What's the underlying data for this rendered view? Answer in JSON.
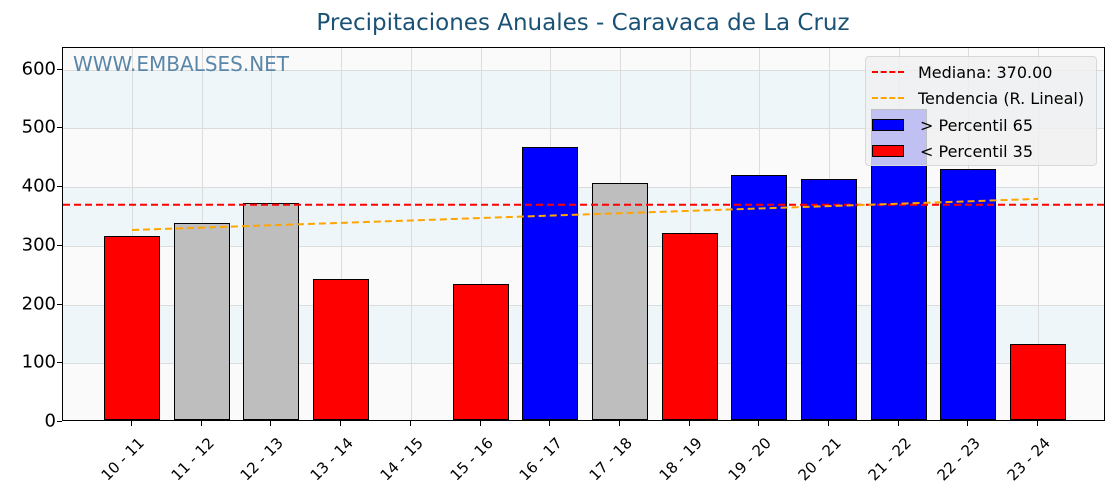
{
  "chart_data": {
    "type": "bar",
    "title": "Precipitaciones Anuales - Caravaca de La Cruz",
    "xlabel": "",
    "ylabel": "",
    "ylim": [
      0,
      637
    ],
    "yticks": [
      0,
      100,
      200,
      300,
      400,
      500,
      600
    ],
    "grid": true,
    "legend_position": "upper right",
    "categories": [
      "10 - 11",
      "11 - 12",
      "12 - 13",
      "13 - 14",
      "14 - 15",
      "15 - 16",
      "16 - 17",
      "17 - 18",
      "18 - 19",
      "19 - 20",
      "20 - 21",
      "21 - 22",
      "22 - 23",
      "23 - 24"
    ],
    "values": [
      314,
      336,
      370,
      240,
      0,
      232,
      465,
      404,
      318,
      418,
      411,
      530,
      428,
      130
    ],
    "bar_colors": [
      "#ff0000",
      "#bebebe",
      "#bebebe",
      "#ff0000",
      "#ff0000",
      "#ff0000",
      "#0000ff",
      "#bebebe",
      "#ff0000",
      "#0000ff",
      "#0000ff",
      "#0000ff",
      "#0000ff",
      "#ff0000"
    ],
    "median": 370.0,
    "trend": {
      "start": 327,
      "end": 380
    },
    "legend": [
      {
        "label": "Mediana: 370.00",
        "kind": "dashed-line",
        "color": "#ff0000"
      },
      {
        "label": "Tendencia (R. Lineal)",
        "kind": "dashed-line",
        "color": "#ffa500"
      },
      {
        "label": "> Percentil 65",
        "kind": "patch",
        "color": "#0000ff"
      },
      {
        "label": "< Percentil 35",
        "kind": "patch",
        "color": "#ff0000"
      }
    ],
    "annotations": [
      "WWW.EMBALSES.NET"
    ]
  },
  "header": {
    "title": "Precipitaciones Anuales - Caravaca de La Cruz"
  },
  "watermark": "WWW.EMBALSES.NET",
  "yaxis": {
    "ticks": [
      "0",
      "100",
      "200",
      "300",
      "400",
      "500",
      "600"
    ]
  },
  "legend": {
    "median": "Mediana: 370.00",
    "trend": "Tendencia (R. Lineal)",
    "p65": "> Percentil 65",
    "p35": "< Percentil 35"
  },
  "colors": {
    "median": "#ff0000",
    "trend": "#ffa500",
    "high": "#0000ff",
    "low": "#ff0000",
    "mid": "#bebebe",
    "title": "#1a5276"
  }
}
